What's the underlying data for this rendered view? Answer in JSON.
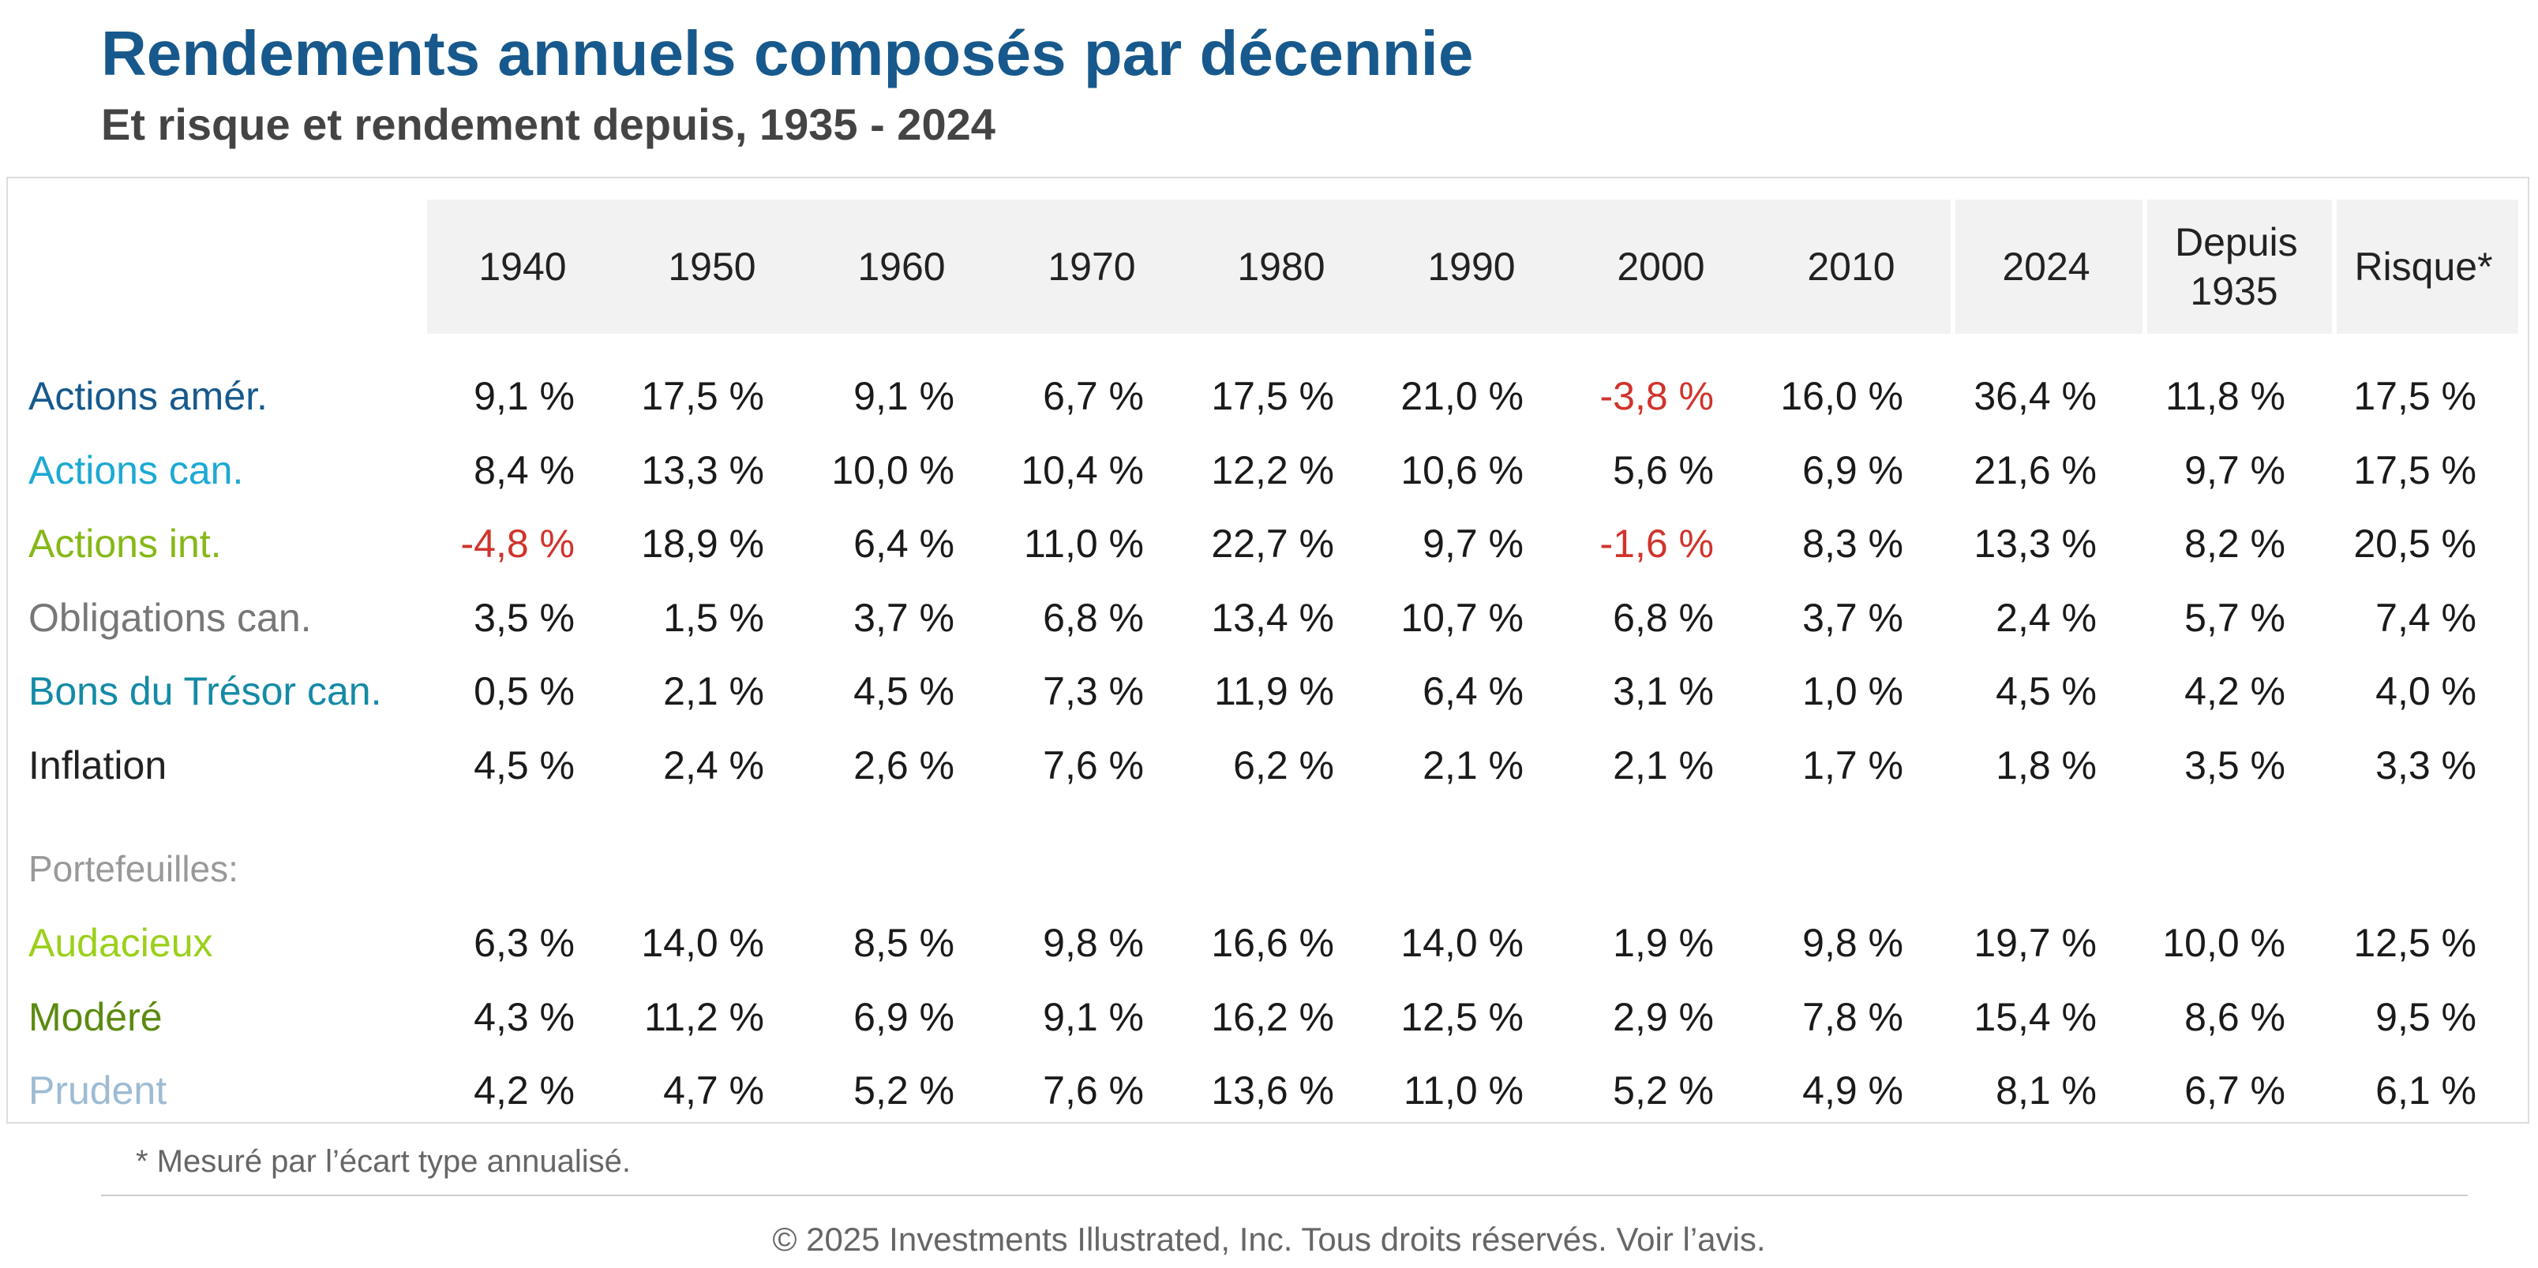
{
  "title": "Rendements annuels composés par décennie",
  "subtitle": "Et risque et rendement depuis, 1935 - 2024",
  "colors": {
    "title": "#17598c",
    "negative": "#d0342c",
    "header_bg": "#f2f2f2",
    "actions_amer": "#17598c",
    "actions_can": "#1ca9d4",
    "actions_int": "#86b817",
    "obligations_can": "#777777",
    "bons_tresor": "#148aa6",
    "inflation": "#222222",
    "portefeuilles": "#999999",
    "audacieux": "#9bd01b",
    "modere": "#5a8a10",
    "prudent": "#9dbbd3"
  },
  "footnote": "* Mesuré par l’écart type annualisé.",
  "copyright": "© 2025 Investments Illustrated, Inc. Tous droits réservés. Voir l’avis.",
  "chart_data": {
    "type": "table",
    "columns": [
      "1940",
      "1950",
      "1960",
      "1970",
      "1980",
      "1990",
      "2000",
      "2010",
      "2024",
      "Depuis 1935",
      "Risque*"
    ],
    "rows": [
      {
        "label": "Actions amér.",
        "color": "#17598c",
        "values": [
          "9,1 %",
          "17,5 %",
          "9,1 %",
          "6,7 %",
          "17,5 %",
          "21,0 %",
          "-3,8 %",
          "16,0 %",
          "36,4 %",
          "11,8 %",
          "17,5 %"
        ]
      },
      {
        "label": "Actions can.",
        "color": "#1ca9d4",
        "values": [
          "8,4 %",
          "13,3 %",
          "10,0 %",
          "10,4 %",
          "12,2 %",
          "10,6 %",
          "5,6 %",
          "6,9 %",
          "21,6 %",
          "9,7 %",
          "17,5 %"
        ]
      },
      {
        "label": "Actions int.",
        "color": "#86b817",
        "values": [
          "-4,8 %",
          "18,9 %",
          "6,4 %",
          "11,0 %",
          "22,7 %",
          "9,7 %",
          "-1,6 %",
          "8,3 %",
          "13,3 %",
          "8,2 %",
          "20,5 %"
        ]
      },
      {
        "label": "Obligations can.",
        "color": "#777777",
        "values": [
          "3,5 %",
          "1,5 %",
          "3,7 %",
          "6,8 %",
          "13,4 %",
          "10,7 %",
          "6,8 %",
          "3,7 %",
          "2,4 %",
          "5,7 %",
          "7,4 %"
        ]
      },
      {
        "label": "Bons du Trésor can.",
        "color": "#148aa6",
        "values": [
          "0,5 %",
          "2,1 %",
          "4,5 %",
          "7,3 %",
          "11,9 %",
          "6,4 %",
          "3,1 %",
          "1,0 %",
          "4,5 %",
          "4,2 %",
          "4,0 %"
        ]
      },
      {
        "label": "Inflation",
        "color": "#222222",
        "values": [
          "4,5 %",
          "2,4 %",
          "2,6 %",
          "7,6 %",
          "6,2 %",
          "2,1 %",
          "2,1 %",
          "1,7 %",
          "1,8 %",
          "3,5 %",
          "3,3 %"
        ]
      }
    ],
    "section_label": "Portefeuilles:",
    "section_rows": [
      {
        "label": "Audacieux",
        "color": "#9bd01b",
        "values": [
          "6,3 %",
          "14,0 %",
          "8,5 %",
          "9,8 %",
          "16,6 %",
          "14,0 %",
          "1,9 %",
          "9,8 %",
          "19,7 %",
          "10,0 %",
          "12,5 %"
        ]
      },
      {
        "label": "Modéré",
        "color": "#5a8a10",
        "values": [
          "4,3 %",
          "11,2 %",
          "6,9 %",
          "9,1 %",
          "16,2 %",
          "12,5 %",
          "2,9 %",
          "7,8 %",
          "15,4 %",
          "8,6 %",
          "9,5 %"
        ]
      },
      {
        "label": "Prudent",
        "color": "#9dbbd3",
        "values": [
          "4,2 %",
          "4,7 %",
          "5,2 %",
          "7,6 %",
          "13,6 %",
          "11,0 %",
          "5,2 %",
          "4,9 %",
          "8,1 %",
          "6,7 %",
          "6,1 %"
        ]
      }
    ]
  }
}
